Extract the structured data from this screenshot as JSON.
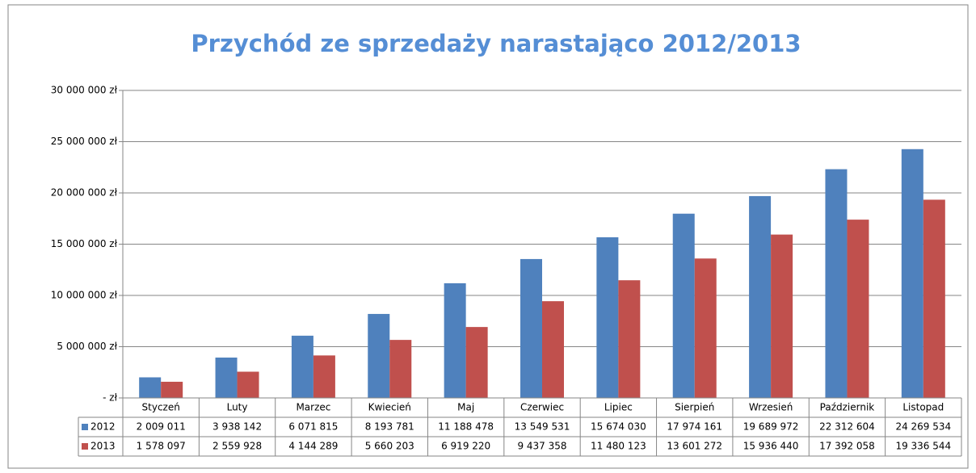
{
  "chart_data": {
    "type": "bar",
    "title": "Przychód ze sprzedaży narastająco 2012/2013",
    "categories": [
      "Styczeń",
      "Luty",
      "Marzec",
      "Kwiecień",
      "Maj",
      "Czerwiec",
      "Lipiec",
      "Sierpień",
      "Wrzesień",
      "Październik",
      "Listopad"
    ],
    "series": [
      {
        "name": "2012",
        "color": "#4f81bd",
        "values": [
          2009011,
          3938142,
          6071815,
          8193781,
          11188478,
          13549531,
          15674030,
          17974161,
          19689972,
          22312604,
          24269534
        ],
        "value_labels": [
          "2 009 011",
          "3 938 142",
          "6 071 815",
          "8 193 781",
          "11 188 478",
          "13 549 531",
          "15 674 030",
          "17 974 161",
          "19 689 972",
          "22 312 604",
          "24 269 534"
        ]
      },
      {
        "name": "2013",
        "color": "#c0504d",
        "values": [
          1578097,
          2559928,
          4144289,
          5660203,
          6919220,
          9437358,
          11480123,
          13601272,
          15936440,
          17392058,
          19336544
        ],
        "value_labels": [
          "1 578 097",
          "2 559 928",
          "4 144 289",
          "5 660 203",
          "6 919 220",
          "9 437 358",
          "11 480 123",
          "13 601 272",
          "15 936 440",
          "17 392 058",
          "19 336 544"
        ]
      }
    ],
    "ylim": [
      0,
      30000000
    ],
    "yticks": [
      {
        "value": 0,
        "label": "- zł"
      },
      {
        "value": 5000000,
        "label": "5 000 000 zł"
      },
      {
        "value": 10000000,
        "label": "10 000 000 zł"
      },
      {
        "value": 15000000,
        "label": "15 000 000 zł"
      },
      {
        "value": 20000000,
        "label": "20 000 000 zł"
      },
      {
        "value": 25000000,
        "label": "25 000 000 zł"
      },
      {
        "value": 30000000,
        "label": "30 000 000 zł"
      }
    ],
    "grid": true
  }
}
